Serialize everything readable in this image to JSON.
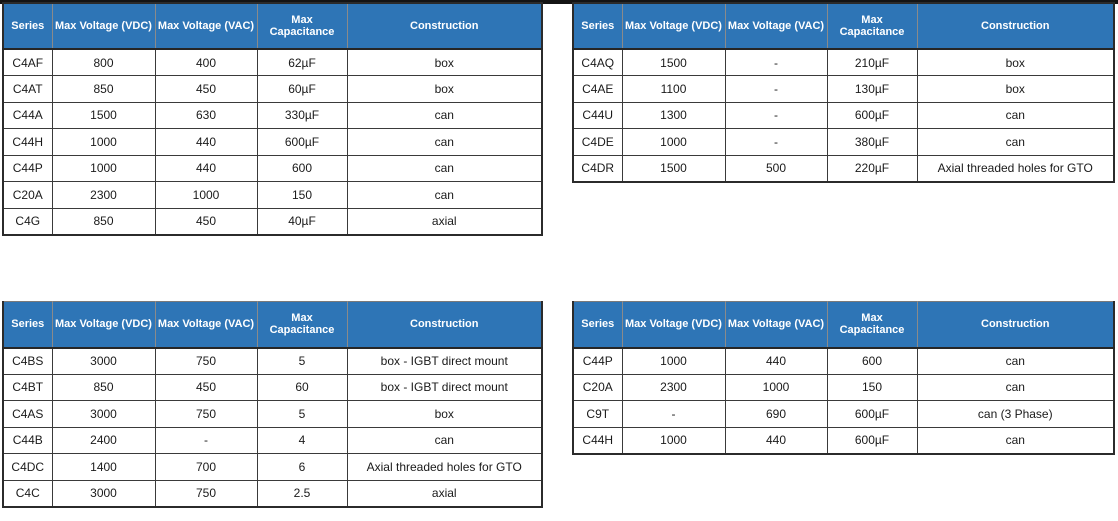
{
  "colors": {
    "header_bg": "#2E75B6",
    "header_text": "#FFFFFF",
    "body_text": "#1a1a1a",
    "border_dark": "#2b2b2b",
    "page_bg": "#FFFFFF"
  },
  "tables": {
    "top_left": {
      "headers": [
        "Series",
        "Max Voltage (VDC)",
        "Max Voltage (VAC)",
        "Max Capacitance",
        "Construction"
      ],
      "rows": [
        [
          "C4AF",
          "800",
          "400",
          "62µF",
          "box"
        ],
        [
          "C4AT",
          "850",
          "450",
          "60µF",
          "box"
        ],
        [
          "C44A",
          "1500",
          "630",
          "330µF",
          "can"
        ],
        [
          "C44H",
          "1000",
          "440",
          "600µF",
          "can"
        ],
        [
          "C44P",
          "1000",
          "440",
          "600",
          "can"
        ],
        [
          "C20A",
          "2300",
          "1000",
          "150",
          "can"
        ],
        [
          "C4G",
          "850",
          "450",
          "40µF",
          "axial"
        ]
      ]
    },
    "top_right": {
      "headers": [
        "Series",
        "Max Voltage (VDC)",
        "Max Voltage (VAC)",
        "Max Capacitance",
        "Construction"
      ],
      "rows": [
        [
          "C4AQ",
          "1500",
          "-",
          "210µF",
          "box"
        ],
        [
          "C4AE",
          "1100",
          "-",
          "130µF",
          "box"
        ],
        [
          "C44U",
          "1300",
          "-",
          "600µF",
          "can"
        ],
        [
          "C4DE",
          "1000",
          "-",
          "380µF",
          "can"
        ],
        [
          "C4DR",
          "1500",
          "500",
          "220µF",
          "Axial threaded holes for GTO"
        ]
      ]
    },
    "bottom_left": {
      "headers": [
        "Series",
        "Max Voltage (VDC)",
        "Max Voltage (VAC)",
        "Max Capacitance",
        "Construction"
      ],
      "rows": [
        [
          "C4BS",
          "3000",
          "750",
          "5",
          "box - IGBT direct mount"
        ],
        [
          "C4BT",
          "850",
          "450",
          "60",
          "box - IGBT direct mount"
        ],
        [
          "C4AS",
          "3000",
          "750",
          "5",
          "box"
        ],
        [
          "C44B",
          "2400",
          "-",
          "4",
          "can"
        ],
        [
          "C4DC",
          "1400",
          "700",
          "6",
          "Axial threaded holes for GTO"
        ],
        [
          "C4C",
          "3000",
          "750",
          "2.5",
          "axial"
        ]
      ]
    },
    "bottom_right": {
      "headers": [
        "Series",
        "Max Voltage (VDC)",
        "Max Voltage (VAC)",
        "Max Capacitance",
        "Construction"
      ],
      "rows": [
        [
          "C44P",
          "1000",
          "440",
          "600",
          "can"
        ],
        [
          "C20A",
          "2300",
          "1000",
          "150",
          "can"
        ],
        [
          "C9T",
          "-",
          "690",
          "600µF",
          "can (3 Phase)"
        ],
        [
          "C44H",
          "1000",
          "440",
          "600µF",
          "can"
        ]
      ]
    }
  }
}
